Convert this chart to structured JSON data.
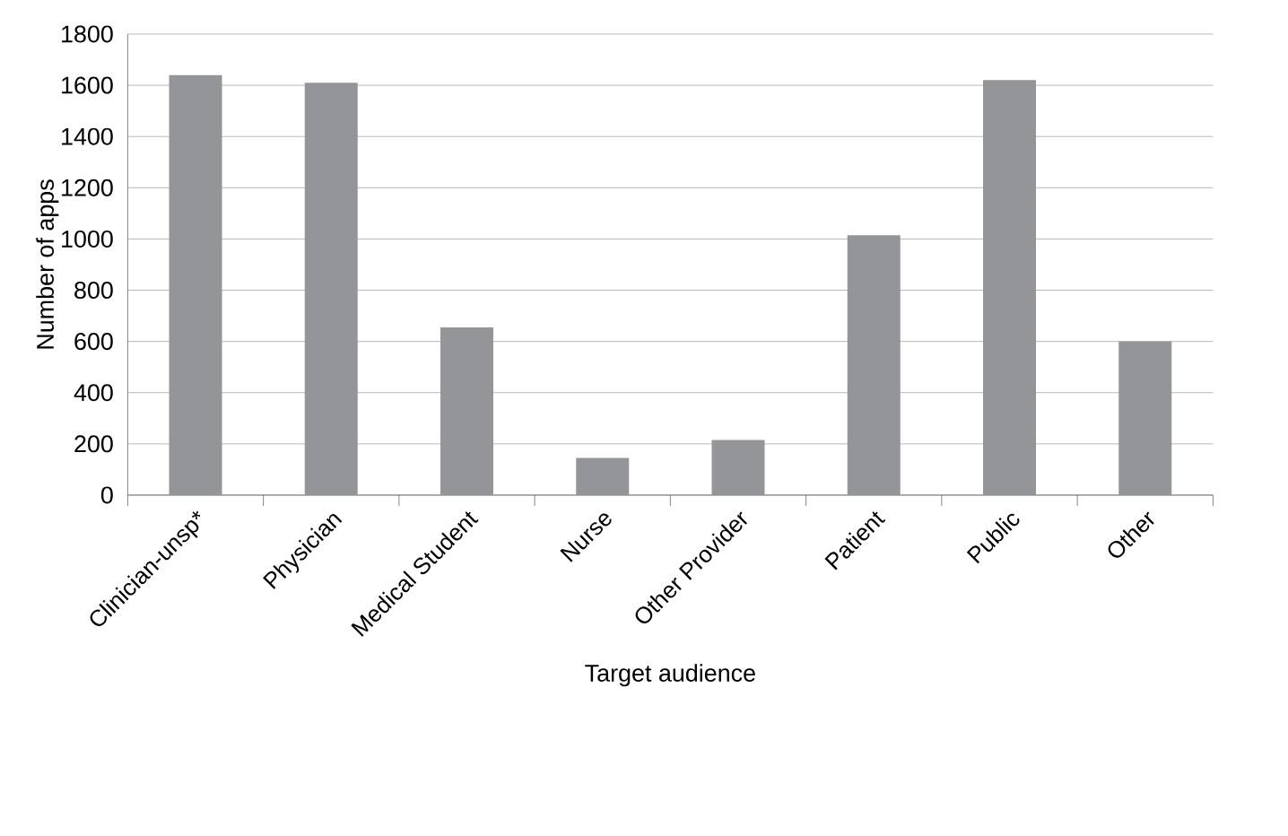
{
  "chart_data": {
    "type": "bar",
    "xlabel": "Target audience",
    "ylabel": "Number of apps",
    "categories": [
      "Clinician-unsp*",
      "Physician",
      "Medical Student",
      "Nurse",
      "Other Provider",
      "Patient",
      "Public",
      "Other"
    ],
    "values": [
      1640,
      1610,
      655,
      145,
      215,
      1015,
      1620,
      600
    ],
    "color": "#939598",
    "ylim": [
      0,
      1800
    ],
    "yticks": [
      0,
      200,
      400,
      600,
      800,
      1000,
      1200,
      1400,
      1600,
      1800
    ],
    "grid": "y"
  }
}
